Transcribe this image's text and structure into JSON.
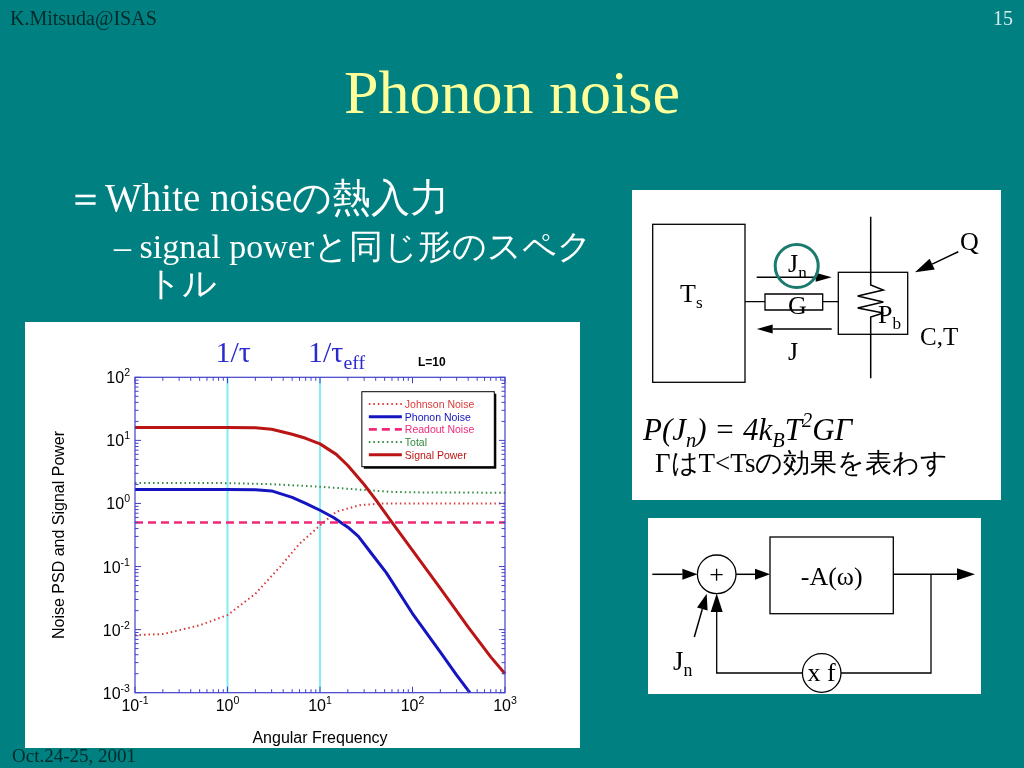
{
  "chart_data": {
    "type": "line",
    "title": "Phonon noise",
    "xlabel": "Angular Frequency",
    "ylabel": "Noise PSD and Signal Power",
    "log": "xy",
    "xlim": [
      0.1,
      1000
    ],
    "ylim": [
      0.001,
      100
    ],
    "xticks": [
      {
        "value": 0.1,
        "label": "10$^{-1}$"
      },
      {
        "value": 0.2,
        "label": null
      },
      {
        "value": 0.3,
        "label": null
      },
      {
        "value": 0.4,
        "label": null
      },
      {
        "value": 0.5,
        "label": null
      },
      {
        "value": 0.6,
        "label": null
      },
      {
        "value": 0.7,
        "label": null
      },
      {
        "value": 0.8,
        "label": null
      },
      {
        "value": 0.9,
        "label": null
      },
      {
        "value": 1,
        "label": "10$^{0}$"
      },
      {
        "value": 2,
        "label": null
      },
      {
        "value": 3,
        "label": null
      },
      {
        "value": 4,
        "label": null
      },
      {
        "value": 5,
        "label": null
      },
      {
        "value": 6,
        "label": null
      },
      {
        "value": 7,
        "label": null
      },
      {
        "value": 8,
        "label": null
      },
      {
        "value": 9,
        "label": null
      },
      {
        "value": 10,
        "label": "10$^{1}$"
      },
      {
        "value": 20,
        "label": null
      },
      {
        "value": 30,
        "label": null
      },
      {
        "value": 40,
        "label": null
      },
      {
        "value": 50,
        "label": null
      },
      {
        "value": 60,
        "label": null
      },
      {
        "value": 70,
        "label": null
      },
      {
        "value": 80,
        "label": null
      },
      {
        "value": 90,
        "label": null
      },
      {
        "value": 100,
        "label": "10$^{2}$"
      },
      {
        "value": 200,
        "label": null
      },
      {
        "value": 300,
        "label": null
      },
      {
        "value": 400,
        "label": null
      },
      {
        "value": 500,
        "label": null
      },
      {
        "value": 600,
        "label": null
      },
      {
        "value": 700,
        "label": null
      },
      {
        "value": 800,
        "label": null
      },
      {
        "value": 900,
        "label": null
      },
      {
        "value": 1000,
        "label": "10$^{3}$"
      }
    ],
    "yticks": [
      {
        "value": 0.001,
        "label": "10$^{-3}$"
      },
      {
        "value": 0.002,
        "label": null
      },
      {
        "value": 0.003,
        "label": null
      },
      {
        "value": 0.004,
        "label": null
      },
      {
        "value": 0.005,
        "label": null
      },
      {
        "value": 0.006,
        "label": null
      },
      {
        "value": 0.007,
        "label": null
      },
      {
        "value": 0.008,
        "label": null
      },
      {
        "value": 0.009,
        "label": null
      },
      {
        "value": 0.01,
        "label": "10$^{-2}$"
      },
      {
        "value": 0.02,
        "label": null
      },
      {
        "value": 0.03,
        "label": null
      },
      {
        "value": 0.04,
        "label": null
      },
      {
        "value": 0.05,
        "label": null
      },
      {
        "value": 0.06,
        "label": null
      },
      {
        "value": 0.07,
        "label": null
      },
      {
        "value": 0.08,
        "label": null
      },
      {
        "value": 0.09,
        "label": null
      },
      {
        "value": 0.1,
        "label": "10$^{-1}$"
      },
      {
        "value": 0.2,
        "label": null
      },
      {
        "value": 0.3,
        "label": null
      },
      {
        "value": 0.4,
        "label": null
      },
      {
        "value": 0.5,
        "label": null
      },
      {
        "value": 0.6,
        "label": null
      },
      {
        "value": 0.7,
        "label": null
      },
      {
        "value": 0.8,
        "label": null
      },
      {
        "value": 0.9,
        "label": null
      },
      {
        "value": 1,
        "label": "10$^{0}$"
      },
      {
        "value": 2,
        "label": null
      },
      {
        "value": 3,
        "label": null
      },
      {
        "value": 4,
        "label": null
      },
      {
        "value": 5,
        "label": null
      },
      {
        "value": 6,
        "label": null
      },
      {
        "value": 7,
        "label": null
      },
      {
        "value": 8,
        "label": null
      },
      {
        "value": 9,
        "label": null
      },
      {
        "value": 10,
        "label": "10$^{1}$"
      },
      {
        "value": 20,
        "label": null
      },
      {
        "value": 30,
        "label": null
      },
      {
        "value": 40,
        "label": null
      },
      {
        "value": 50,
        "label": null
      },
      {
        "value": 60,
        "label": null
      },
      {
        "value": 70,
        "label": null
      },
      {
        "value": 80,
        "label": null
      },
      {
        "value": 90,
        "label": null
      },
      {
        "value": 100,
        "label": "10$^{2}$"
      }
    ],
    "series": [
      {
        "name": "Johnson Noise",
        "color": "#d93a3a",
        "line_style": "dotted",
        "x": [
          0.1,
          0.2,
          0.5,
          1,
          2,
          3.7,
          6,
          10,
          15,
          27,
          48,
          100,
          1000
        ],
        "values": [
          0.0082,
          0.0085,
          0.0117,
          0.017,
          0.037,
          0.099,
          0.23,
          0.45,
          0.74,
          0.94,
          1,
          1,
          1
        ]
      },
      {
        "name": "Phonon Noise",
        "color": "#1414c0",
        "line_style": "solid",
        "x": [
          0.1,
          1,
          2,
          3,
          5,
          7,
          10,
          14,
          20,
          26,
          35,
          52,
          100,
          200,
          300,
          417
        ],
        "values": [
          1.67,
          1.67,
          1.65,
          1.58,
          1.25,
          1.0,
          0.78,
          0.6,
          0.42,
          0.3,
          0.17,
          0.08,
          0.018,
          0.0044,
          0.0019,
          0.001
        ]
      },
      {
        "name": "Readout Noise",
        "color": "#f0287a",
        "line_style": "dashed",
        "x": [
          0.1,
          1000
        ],
        "values": [
          0.5,
          0.5
        ]
      },
      {
        "name": "Total",
        "color": "#308a40",
        "line_style": "dotted",
        "x": [
          0.1,
          1,
          3,
          10,
          25,
          57,
          100,
          1000
        ],
        "values": [
          2.12,
          2.1,
          2.02,
          1.84,
          1.67,
          1.53,
          1.5,
          1.48
        ]
      },
      {
        "name": "Signal Power",
        "color": "#bb1414",
        "line_style": "solid",
        "x": [
          0.1,
          1,
          2,
          3,
          5,
          7,
          10,
          15,
          20,
          30,
          40,
          60,
          100,
          200,
          400,
          700,
          1000
        ],
        "values": [
          16,
          16,
          15.8,
          15,
          12.5,
          10.8,
          8.8,
          6,
          4,
          2,
          1.15,
          0.5,
          0.18,
          0.045,
          0.011,
          0.0037,
          0.002
        ]
      }
    ],
    "ref_lines": [
      {
        "axis": "x",
        "value": 1,
        "label": "1/τ",
        "color": "#80eef4"
      },
      {
        "axis": "x",
        "value": 10,
        "label": "1/τ$_{eff}$",
        "color": "#80eef4"
      }
    ],
    "legend": "top right",
    "annotations": [
      "K.Mitsuda@ISAS",
      "15",
      "＝White noiseの熱入力",
      "– signal powerと同じ形のスペクトル",
      "L=10",
      "Oct.24-25, 2001",
      "T$_{s}$",
      "J$_{n}$",
      "G",
      "P$_{b}$",
      "Q",
      "C,T",
      "J",
      "P(J$_{n}$) = 4k$_{B}$T$^{2}$GΓ",
      "ΓはT<Tsの効果を表わす",
      "+",
      "-A(ω)",
      "J$_{n}$",
      "x f"
    ]
  }
}
